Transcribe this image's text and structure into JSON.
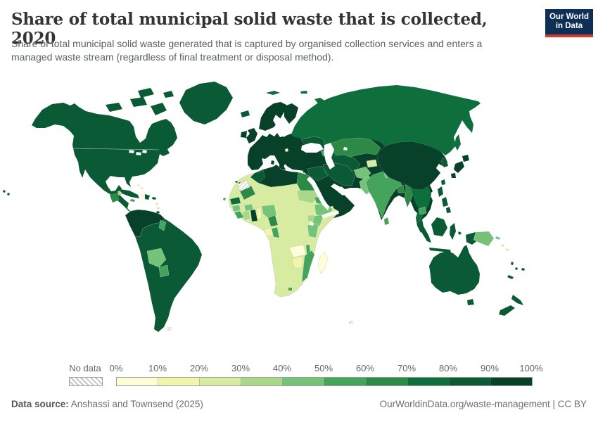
{
  "header": {
    "title": "Share of total municipal solid waste that is collected, 2020",
    "subtitle_line1": "Share of total municipal solid waste generated that is captured by organised collection services and enters a",
    "subtitle_line2": "managed waste stream (regardless of final treatment or disposal method).",
    "logo": {
      "line1": "Our World",
      "line2": "in Data",
      "bg_color": "#0e2f57",
      "accent_color": "#d0392e"
    }
  },
  "legend": {
    "no_data_label": "No data",
    "tick_labels": [
      "0%",
      "10%",
      "20%",
      "30%",
      "40%",
      "50%",
      "60%",
      "70%",
      "80%",
      "90%",
      "100%"
    ]
  },
  "footer": {
    "source_label": "Data source:",
    "source_value": " Anshassi and Townsend (2025)",
    "credit": "OurWorldinData.org/waste-management | CC BY"
  },
  "chart_data": {
    "type": "choropleth",
    "title": "Share of total municipal solid waste that is collected, 2020",
    "year": 2020,
    "unit": "%",
    "legend_position": "bottom",
    "bin_edges_percent": [
      0,
      10,
      20,
      30,
      40,
      50,
      60,
      70,
      80,
      90,
      100
    ],
    "bin_colors": [
      "#fdfdd8",
      "#f1f6ac",
      "#d8eca1",
      "#a9d88a",
      "#74c379",
      "#44a45c",
      "#2c8a46",
      "#0e6e3c",
      "#0a5a35",
      "#07412a"
    ],
    "no_data_pattern": "diagonal-hatch",
    "regions": {
      "north-america": 9,
      "arctic-islands": 9,
      "greenland": 9,
      "iceland": 9,
      "hawaii": 9,
      "guatemala": 7,
      "belize": 4,
      "cuba": 9,
      "haiti": 1,
      "dominican-republic": 9,
      "jamaica": 6,
      "puerto-rico": 9,
      "lesser-antilles": 3,
      "trinidad": 9,
      "bahamas": 3,
      "south-america": 9,
      "colombia-venezuela": 10,
      "guyana": 6,
      "bolivia": 5,
      "paraguay": 6,
      "falkland-islands": 0,
      "eurasia": 10,
      "russia": 8,
      "scandinavia": 10,
      "finland": 10,
      "united-kingdom": 10,
      "ireland": 10,
      "svalbard": 8,
      "novaya-zemlya": 8,
      "ukraine": 9,
      "kazakhstan": 7,
      "uzbekistan-turkmenistan": 9,
      "tajikistan": 3,
      "caucasus": 6,
      "iraq-syria": 9,
      "iran": 9,
      "afghanistan": 5,
      "pakistan": 5,
      "india": 6,
      "nepal": 5,
      "bangladesh": 7,
      "myanmar": 7,
      "indochina": 8,
      "cambodia": 6,
      "china-mongolia": 10,
      "yemen": 2,
      "montenegro": 2,
      "sri-lanka": 6,
      "korea": 9,
      "japan": 10,
      "sakhalin": 8,
      "taiwan": 9,
      "philippines": 9,
      "indonesia": 9,
      "papua-new-guinea": 5,
      "solomon-islands": 3,
      "australia": 9,
      "new-zealand": 9,
      "pacific-islands": 9,
      "africa": 3,
      "maghreb-libya": 10,
      "morocco": 9,
      "egypt": 7,
      "western-sahara": 0,
      "mauritania": 7,
      "senegal": 8,
      "guinea": 5,
      "sierra-leone-liberia": 6,
      "ivory-coast": 4,
      "ghana": 10,
      "togo-benin": 2,
      "burkina-faso": 5,
      "nigeria": 5,
      "cameroon": 7,
      "gabon": 2,
      "congo": 6,
      "sudan": 4,
      "eritrea": 6,
      "ethiopia": 5,
      "uganda": 4,
      "kenya": 5,
      "tanzania": 5,
      "zambia": 1,
      "malawi": 6,
      "mozambique": 6,
      "zimbabwe": 2,
      "lesotho": 6,
      "madagascar": 1,
      "kerguelen": 0,
      "mediterranean-islands": 10,
      "canary-islands": 9,
      "cape-verde": 6
    }
  }
}
